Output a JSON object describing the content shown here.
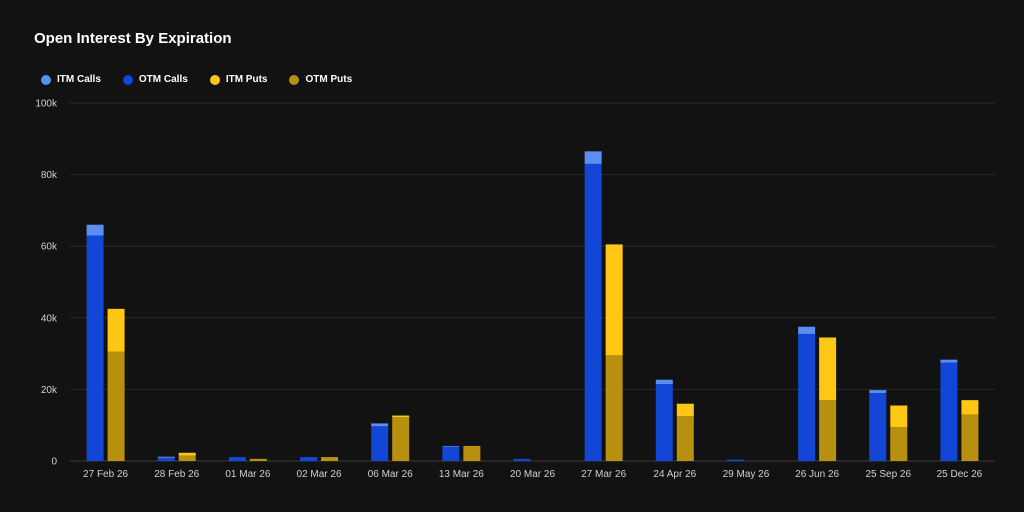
{
  "chart_data": {
    "type": "bar",
    "title": "Open Interest By Expiration",
    "xlabel": "",
    "ylabel": "",
    "ylim": [
      0,
      100000
    ],
    "y_ticks": [
      {
        "value": 0,
        "label": "0"
      },
      {
        "value": 20000,
        "label": "20k"
      },
      {
        "value": 40000,
        "label": "40k"
      },
      {
        "value": 60000,
        "label": "60k"
      },
      {
        "value": 80000,
        "label": "80k"
      },
      {
        "value": 100000,
        "label": "100k"
      }
    ],
    "grid": true,
    "legend_position": "top-left",
    "stacked_groups": [
      [
        "ITM Calls",
        "OTM Calls"
      ],
      [
        "ITM Puts",
        "OTM Puts"
      ]
    ],
    "categories": [
      "27 Feb 26",
      "28 Feb 26",
      "01 Mar 26",
      "02 Mar 26",
      "06 Mar 26",
      "13 Mar 26",
      "20 Mar 26",
      "27 Mar 26",
      "24 Apr 26",
      "29 May 26",
      "26 Jun 26",
      "25 Sep 26",
      "25 Dec 26"
    ],
    "series": [
      {
        "name": "ITM Calls",
        "color": "#5b8ef2",
        "values": [
          3000,
          300,
          0,
          0,
          800,
          200,
          0,
          3500,
          1200,
          0,
          2000,
          800,
          800
        ]
      },
      {
        "name": "OTM Calls",
        "color": "#1146d6",
        "values": [
          63000,
          900,
          1100,
          1100,
          9700,
          4000,
          600,
          83000,
          21500,
          400,
          35500,
          19000,
          27500
        ]
      },
      {
        "name": "ITM Puts",
        "color": "#fdc714",
        "values": [
          12000,
          800,
          0,
          0,
          500,
          0,
          0,
          31000,
          3500,
          0,
          17500,
          6000,
          4000
        ]
      },
      {
        "name": "OTM Puts",
        "color": "#b8900f",
        "values": [
          30500,
          1500,
          600,
          1100,
          12200,
          4200,
          0,
          29500,
          12500,
          0,
          17000,
          9500,
          13000
        ]
      }
    ]
  }
}
